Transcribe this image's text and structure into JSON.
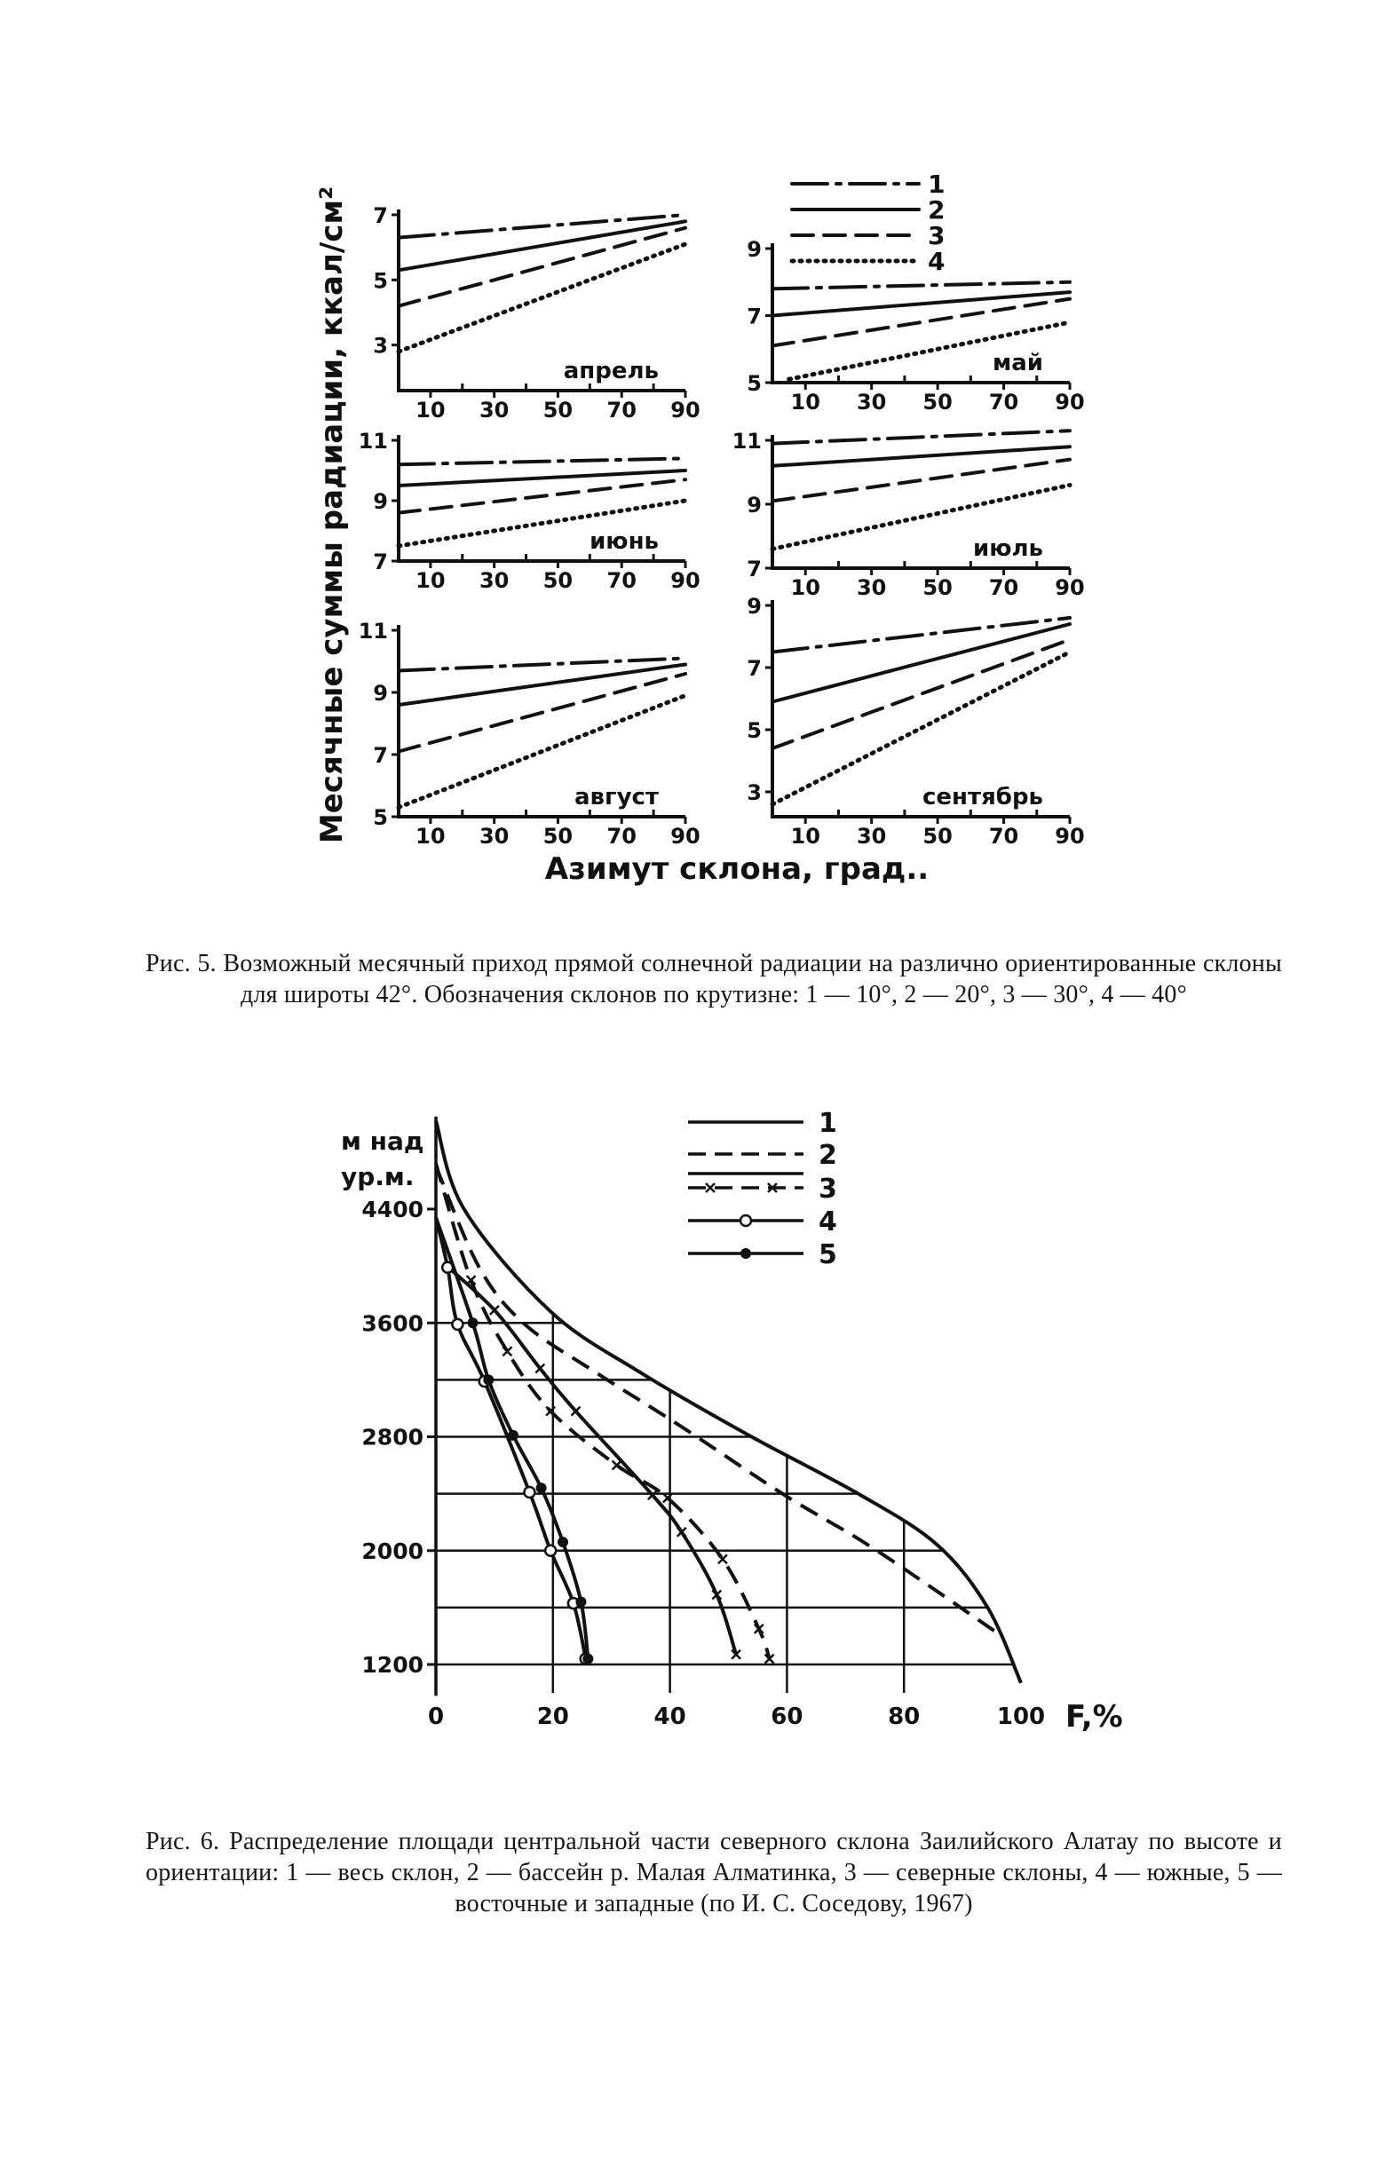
{
  "figure5": {
    "caption": "Рис. 5. Возможный месячный приход прямой солнечной радиации на различно ориентированные склоны для широты 42°. Обозначения склонов по крутизне: 1 — 10°, 2 — 20°, 3 — 30°, 4 — 40°"
  },
  "figure6": {
    "caption": "Рис. 6. Распределение площади центральной части северного склона Заилийского Алатау по высоте и ориентации: 1 — весь склон, 2 — бассейн р. Малая Алматинка, 3 — северные склоны, 4 — южные, 5 — восточные и западные (по И. С. Соседову, 1967)"
  },
  "chart_data": [
    {
      "type": "line",
      "ylabel": "Месячные суммы радиации, ккал/см²",
      "xlabel": "Азимут склона, град..",
      "xlim": [
        0,
        90
      ],
      "xticks": [
        "10",
        "30",
        "50",
        "70",
        "90"
      ],
      "legend": {
        "placement": "top-right",
        "entries": [
          "1",
          "2",
          "3",
          "4"
        ],
        "styles": [
          "dash-dot",
          "solid",
          "dashed",
          "dotted"
        ]
      },
      "panels": [
        {
          "label": "апрель",
          "ylim": [
            1.6,
            7
          ],
          "yticks": [
            "7",
            "5",
            "3"
          ],
          "series": [
            {
              "name": "1",
              "x": [
                0,
                90
              ],
              "y": [
                6.3,
                7.0
              ]
            },
            {
              "name": "2",
              "x": [
                0,
                90
              ],
              "y": [
                5.3,
                6.8
              ]
            },
            {
              "name": "3",
              "x": [
                0,
                90
              ],
              "y": [
                4.2,
                6.6
              ]
            },
            {
              "name": "4",
              "x": [
                0,
                90
              ],
              "y": [
                2.8,
                6.1
              ]
            }
          ]
        },
        {
          "label": "май",
          "ylim": [
            5,
            9
          ],
          "yticks": [
            "9",
            "7",
            "5"
          ],
          "series": [
            {
              "name": "1",
              "x": [
                0,
                90
              ],
              "y": [
                7.8,
                8.0
              ]
            },
            {
              "name": "2",
              "x": [
                0,
                90
              ],
              "y": [
                7.0,
                7.7
              ]
            },
            {
              "name": "3",
              "x": [
                0,
                90
              ],
              "y": [
                6.1,
                7.5
              ]
            },
            {
              "name": "4",
              "x": [
                5,
                90
              ],
              "y": [
                5.1,
                6.8
              ]
            }
          ]
        },
        {
          "label": "июнь",
          "ylim": [
            7,
            11
          ],
          "yticks": [
            "11",
            "9",
            "7"
          ],
          "series": [
            {
              "name": "1",
              "x": [
                0,
                90
              ],
              "y": [
                10.2,
                10.4
              ]
            },
            {
              "name": "2",
              "x": [
                0,
                90
              ],
              "y": [
                9.5,
                10.0
              ]
            },
            {
              "name": "3",
              "x": [
                0,
                90
              ],
              "y": [
                8.6,
                9.7
              ]
            },
            {
              "name": "4",
              "x": [
                0,
                90
              ],
              "y": [
                7.5,
                9.0
              ]
            }
          ]
        },
        {
          "label": "июль",
          "ylim": [
            7,
            11
          ],
          "yticks": [
            "11",
            "9",
            "7"
          ],
          "series": [
            {
              "name": "1",
              "x": [
                0,
                90
              ],
              "y": [
                10.9,
                11.3
              ]
            },
            {
              "name": "2",
              "x": [
                0,
                90
              ],
              "y": [
                10.2,
                10.8
              ]
            },
            {
              "name": "3",
              "x": [
                0,
                90
              ],
              "y": [
                9.1,
                10.4
              ]
            },
            {
              "name": "4",
              "x": [
                0,
                90
              ],
              "y": [
                7.6,
                9.6
              ]
            }
          ]
        },
        {
          "label": "август",
          "ylim": [
            5,
            11
          ],
          "yticks": [
            "11",
            "9",
            "7",
            "5"
          ],
          "series": [
            {
              "name": "1",
              "x": [
                0,
                90
              ],
              "y": [
                9.7,
                10.1
              ]
            },
            {
              "name": "2",
              "x": [
                0,
                90
              ],
              "y": [
                8.6,
                9.9
              ]
            },
            {
              "name": "3",
              "x": [
                0,
                90
              ],
              "y": [
                7.1,
                9.6
              ]
            },
            {
              "name": "4",
              "x": [
                0,
                90
              ],
              "y": [
                5.3,
                8.9
              ]
            }
          ]
        },
        {
          "label": "сентябрь",
          "ylim": [
            2.2,
            9
          ],
          "yticks": [
            "9",
            "7",
            "5",
            "3"
          ],
          "series": [
            {
              "name": "1",
              "x": [
                0,
                90
              ],
              "y": [
                7.5,
                8.6
              ]
            },
            {
              "name": "2",
              "x": [
                0,
                90
              ],
              "y": [
                5.9,
                8.4
              ]
            },
            {
              "name": "3",
              "x": [
                0,
                90
              ],
              "y": [
                4.4,
                7.9
              ]
            },
            {
              "name": "4",
              "x": [
                0,
                90
              ],
              "y": [
                2.6,
                7.5
              ]
            }
          ]
        }
      ]
    },
    {
      "type": "line",
      "ylabel": "м над ур.м.",
      "xlabel": "F,%",
      "xlim": [
        0,
        100
      ],
      "ylim": [
        1000,
        5000
      ],
      "xticks": [
        "0",
        "20",
        "40",
        "60",
        "80",
        "100"
      ],
      "yticks": [
        "4400",
        "3600",
        "2800",
        "2000",
        "1200"
      ],
      "grid": true,
      "legend": {
        "placement": "top-right",
        "entries": [
          "1",
          "2",
          "3",
          "4",
          "5"
        ]
      },
      "series": [
        {
          "name": "1",
          "style": "solid",
          "x": [
            0,
            4.8,
            19.6,
            35,
            53.5,
            72.6,
            85.7,
            94.3,
            100
          ],
          "y": [
            5020,
            4400,
            3680,
            3250,
            2810,
            2390,
            2040,
            1600,
            1070
          ]
        },
        {
          "name": "2",
          "style": "dashed",
          "x": [
            0,
            7.4,
            15.2,
            27.4,
            42,
            59.6,
            75,
            96
          ],
          "y": [
            4700,
            3990,
            3590,
            3250,
            2870,
            2390,
            2010,
            1420
          ]
        },
        {
          "name": "3",
          "style": "solid-cross",
          "x": [
            1.3,
            10,
            17.8,
            23.9,
            37,
            42,
            48,
            51.3
          ],
          "y": [
            4020,
            3690,
            3280,
            2980,
            2390,
            2130,
            1690,
            1270
          ]
        },
        {
          "name": "3",
          "style": "dashed-cross",
          "x": [
            0,
            6,
            12.2,
            19.6,
            30.9,
            39.6,
            49,
            55.2,
            57
          ],
          "y": [
            4720,
            3900,
            3400,
            2980,
            2600,
            2370,
            1940,
            1450,
            1240
          ]
        },
        {
          "name": "4",
          "style": "open-circle",
          "x": [
            0,
            2,
            3.7,
            8.3,
            16,
            19.6,
            23.5,
            25.6
          ],
          "y": [
            4340,
            3990,
            3590,
            3190,
            2410,
            2000,
            1630,
            1240
          ]
        },
        {
          "name": "5",
          "style": "filled-circle",
          "x": [
            0,
            6.3,
            9,
            13.2,
            18,
            21.7,
            24.8,
            26
          ],
          "y": [
            4340,
            3600,
            3200,
            2810,
            2440,
            2060,
            1640,
            1240
          ]
        }
      ]
    }
  ]
}
